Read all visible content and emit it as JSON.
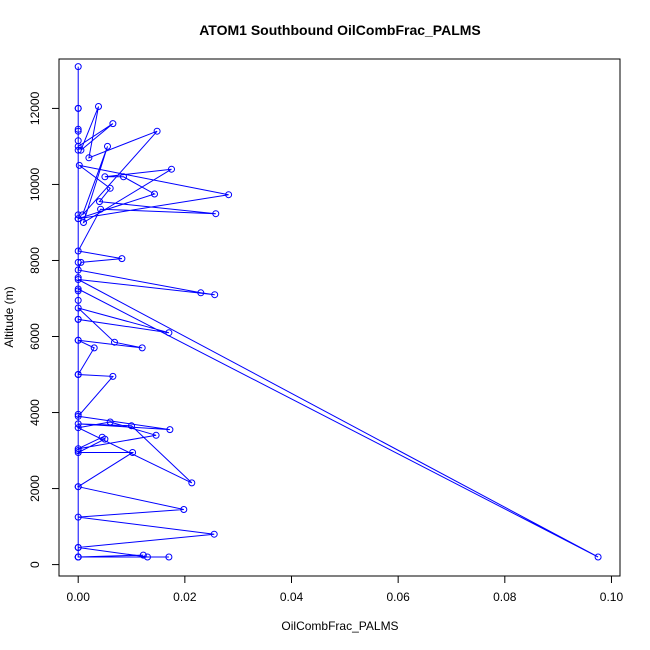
{
  "chart_data": {
    "type": "line",
    "title": "ATOM1 Southbound OilCombFrac_PALMS",
    "xlabel": "OilCombFrac_PALMS",
    "ylabel": "Altitude (m)",
    "xlim": [
      -0.0036,
      0.1016
    ],
    "ylim": [
      -300,
      13300
    ],
    "xticks": [
      0.0,
      0.02,
      0.04,
      0.06,
      0.08,
      0.1
    ],
    "xtick_labels": [
      "0.00",
      "0.02",
      "0.04",
      "0.06",
      "0.08",
      "0.10"
    ],
    "yticks": [
      0,
      2000,
      4000,
      6000,
      8000,
      10000,
      12000
    ],
    "ytick_labels": [
      "0",
      "2000",
      "4000",
      "6000",
      "8000",
      "10000",
      "12000"
    ],
    "grid": false,
    "markers": "open-circle",
    "line_color": "#0000ff",
    "series": [
      {
        "x": [
          0.0,
          0.0,
          0.0,
          0.0,
          0.0065,
          0.0005,
          0.0038,
          0.002,
          0.0148,
          0.0008,
          0.0055,
          0.001,
          0.0175,
          0.005,
          0.0085,
          0.0143,
          0.0,
          0.0282,
          0.0002,
          0.006,
          0.004,
          0.0258,
          0.0042,
          0.0,
          0.0082,
          0.0005,
          0.0,
          0.023,
          0.0256,
          0.0,
          0.0975,
          0.0,
          0.0,
          0.017,
          0.0,
          0.0068,
          0.012,
          0.0,
          0.003,
          0.0,
          0.0065,
          0.0,
          0.0172,
          0.0,
          0.01,
          0.0213,
          0.0,
          0.006,
          0.0146,
          0.0,
          0.0045,
          0.005,
          0.0,
          0.0102,
          0.0,
          0.0198,
          0.0,
          0.0255,
          0.0,
          0.013,
          0.0,
          0.0122,
          0.0,
          0.017,
          0.0,
          0.0,
          0.0,
          0.0,
          0.0,
          0.0,
          0.0,
          0.0,
          0.0,
          0.0,
          0.0,
          0.0,
          0.0,
          0.0,
          0.0,
          0.0,
          0.0,
          0.0
        ],
        "y": [
          13100,
          12000,
          11400,
          11000,
          11600,
          10900,
          12050,
          10700,
          11400,
          9200,
          11000,
          9000,
          10400,
          10200,
          10200,
          9750,
          9100,
          9730,
          10500,
          9900,
          9550,
          9230,
          9350,
          8250,
          8050,
          7950,
          7750,
          7150,
          7100,
          7500,
          200,
          7250,
          6450,
          6100,
          6750,
          5850,
          5700,
          5900,
          5700,
          5000,
          4950,
          3900,
          3550,
          3700,
          3650,
          2150,
          3600,
          3750,
          3400,
          3050,
          3350,
          3300,
          2950,
          2950,
          2050,
          1450,
          1250,
          800,
          450,
          200,
          200,
          250,
          200,
          200,
          200,
          450,
          12000,
          11450,
          11150,
          10900,
          9200,
          9100,
          7950,
          7550,
          7200,
          6950,
          6450,
          5900,
          5000,
          3950,
          3000,
          2050
        ]
      }
    ]
  }
}
